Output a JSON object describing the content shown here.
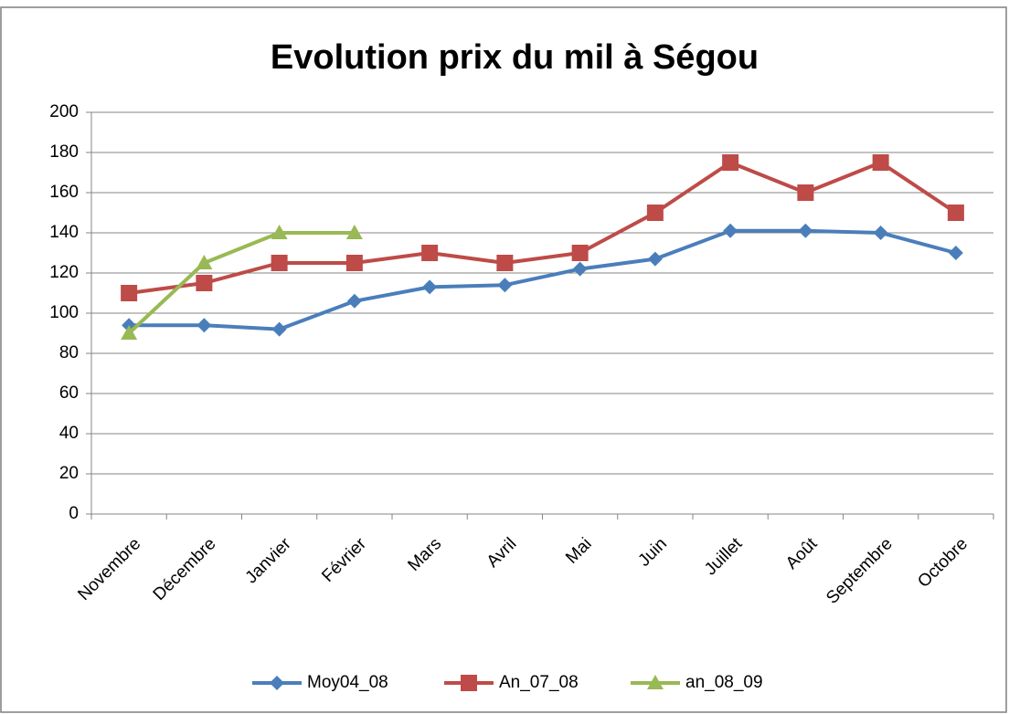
{
  "chart_data": {
    "type": "line",
    "title": "Evolution prix du mil à Ségou",
    "categories": [
      "Novembre",
      "Décembre",
      "Janvier",
      "Février",
      "Mars",
      "Avril",
      "Mai",
      "Juin",
      "Juillet",
      "Août",
      "Septembre",
      "Octobre"
    ],
    "series": [
      {
        "name": "Moy04_08",
        "color": "#4a7ebb",
        "marker": "diamond",
        "values": [
          94,
          94,
          92,
          106,
          113,
          114,
          122,
          127,
          141,
          141,
          140,
          130
        ]
      },
      {
        "name": "An_07_08",
        "color": "#be4b48",
        "marker": "square",
        "values": [
          110,
          115,
          125,
          125,
          130,
          125,
          130,
          150,
          175,
          160,
          175,
          150
        ]
      },
      {
        "name": "an_08_09",
        "color": "#98b954",
        "marker": "triangle",
        "values": [
          90,
          125,
          140,
          140,
          null,
          null,
          null,
          null,
          null,
          null,
          null,
          null
        ]
      }
    ],
    "ylim": [
      0,
      200
    ],
    "yticks": [
      0,
      20,
      40,
      60,
      80,
      100,
      120,
      140,
      160,
      180,
      200
    ],
    "grid": true,
    "legend": "bottom"
  }
}
